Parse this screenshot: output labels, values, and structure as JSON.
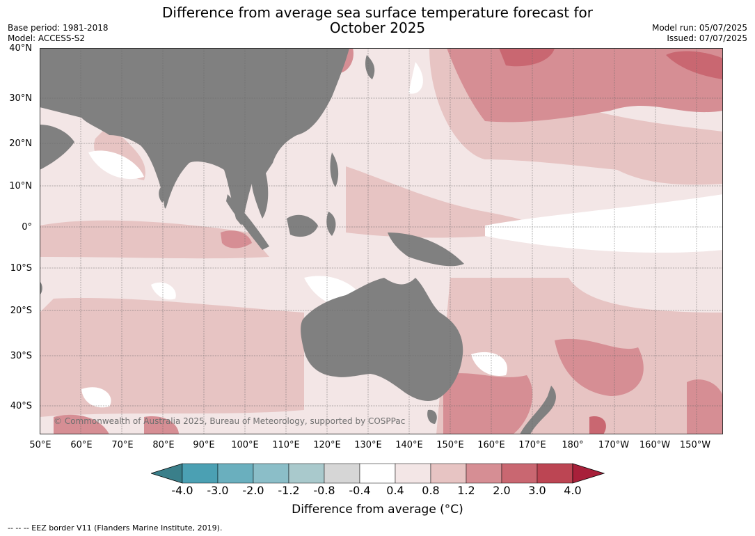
{
  "title": {
    "line1": "Difference from average sea surface temperature forecast for",
    "line2": "October 2025"
  },
  "info_left": {
    "base_period": "Base period: 1981-2018",
    "model": "Model: ACCESS-S2"
  },
  "info_right": {
    "model_run": "Model run: 05/07/2025",
    "issued": "Issued: 07/07/2025"
  },
  "map": {
    "land_color": "#808080",
    "lat_labels": [
      "40°N",
      "30°N",
      "20°N",
      "10°N",
      "0°",
      "10°S",
      "20°S",
      "30°S",
      "40°S"
    ],
    "lon_labels": [
      "50°E",
      "60°E",
      "70°E",
      "80°E",
      "90°E",
      "100°E",
      "110°E",
      "120°E",
      "130°E",
      "140°E",
      "150°E",
      "160°E",
      "170°E",
      "180°",
      "170°W",
      "160°W",
      "150°W"
    ],
    "copyright": "© Commonwealth of Australia 2025, Bureau of Meteorology, supported by COSPPac"
  },
  "colorbar": {
    "ticks": [
      "-4.0",
      "-3.0",
      "-2.0",
      "-1.2",
      "-0.8",
      "-0.4",
      "0.4",
      "0.8",
      "1.2",
      "2.0",
      "3.0",
      "4.0"
    ],
    "colors": [
      "#4ba0b3",
      "#6aafbe",
      "#8bbec8",
      "#a9c9cc",
      "#d6d6d6",
      "#ffffff",
      "#f3e6e6",
      "#e7c4c3",
      "#d68e94",
      "#c96771",
      "#bc4553"
    ],
    "low_color": "#3a7f8a",
    "high_color": "#a8203a",
    "label": "Difference from average (°C)"
  },
  "eez_note": "--  --  -- EEZ border V11 (Flanders Marine Institute, 2019)."
}
